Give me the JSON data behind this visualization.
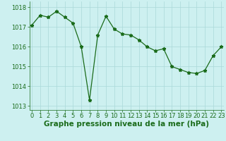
{
  "x": [
    0,
    1,
    2,
    3,
    4,
    5,
    6,
    7,
    8,
    9,
    10,
    11,
    12,
    13,
    14,
    15,
    16,
    17,
    18,
    19,
    20,
    21,
    22,
    23
  ],
  "y": [
    1017.1,
    1017.6,
    1017.5,
    1017.8,
    1017.5,
    1017.2,
    1016.0,
    1013.3,
    1016.6,
    1017.55,
    1016.9,
    1016.65,
    1016.6,
    1016.35,
    1016.0,
    1015.8,
    1015.9,
    1015.0,
    1014.85,
    1014.7,
    1014.65,
    1014.8,
    1015.55,
    1016.0
  ],
  "line_color": "#1a6b1a",
  "marker": "*",
  "marker_size": 3.5,
  "bg_color": "#cdf0f0",
  "grid_color": "#aad8d8",
  "xlabel": "Graphe pression niveau de la mer (hPa)",
  "xlabel_fontsize": 7.5,
  "xlabel_fontweight": "bold",
  "tick_fontsize": 6.0,
  "ylim": [
    1012.8,
    1018.3
  ],
  "yticks": [
    1013,
    1014,
    1015,
    1016,
    1017,
    1018
  ],
  "xticks": [
    0,
    1,
    2,
    3,
    4,
    5,
    6,
    7,
    8,
    9,
    10,
    11,
    12,
    13,
    14,
    15,
    16,
    17,
    18,
    19,
    20,
    21,
    22,
    23
  ],
  "xlim": [
    -0.3,
    23.3
  ]
}
